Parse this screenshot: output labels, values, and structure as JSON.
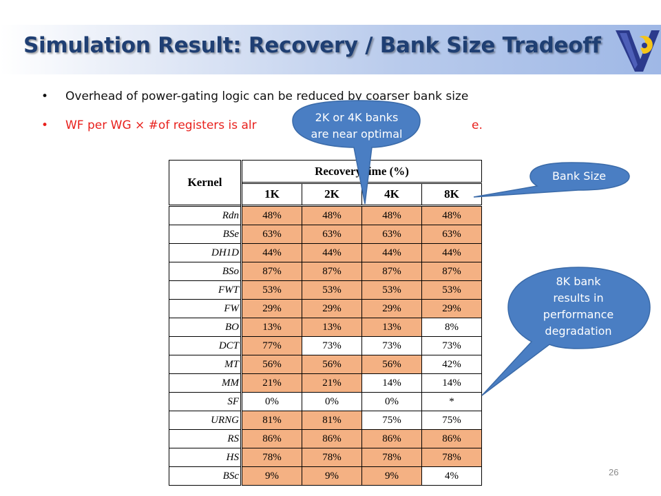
{
  "slide": {
    "title": "Simulation Result: Recovery / Bank Size Tradeoff",
    "page_number": "26",
    "logo_icon": "university-v-logo-icon"
  },
  "bullets": [
    {
      "marker": "•",
      "text": "Overhead of power-gating logic can be reduced by coarser bank size",
      "color": "#111111"
    },
    {
      "marker": "•",
      "text": "WF per WG × #of registers is alr",
      "tail": "e.",
      "color": "#e8201c"
    }
  ],
  "callouts": {
    "top": {
      "line1": "2K or 4K banks",
      "line2": "are near optimal"
    },
    "bank_size": {
      "text": "Bank Size"
    },
    "degradation": {
      "line1": "8K bank",
      "line2": "results in",
      "line3": "performance",
      "line4": "degradation"
    },
    "fill_color": "#4a7ec3"
  },
  "table": {
    "kernel_header": "Kernel",
    "group_header": "Recovery time (%)",
    "columns": [
      "1K",
      "2K",
      "4K",
      "8K"
    ],
    "highlight_color": "#f4b183",
    "rows": [
      {
        "kernel": "Rdn",
        "values": [
          "48%",
          "48%",
          "48%",
          "48%"
        ],
        "hl": [
          true,
          true,
          true,
          true
        ]
      },
      {
        "kernel": "BSe",
        "values": [
          "63%",
          "63%",
          "63%",
          "63%"
        ],
        "hl": [
          true,
          true,
          true,
          true
        ]
      },
      {
        "kernel": "DH1D",
        "values": [
          "44%",
          "44%",
          "44%",
          "44%"
        ],
        "hl": [
          true,
          true,
          true,
          true
        ]
      },
      {
        "kernel": "BSo",
        "values": [
          "87%",
          "87%",
          "87%",
          "87%"
        ],
        "hl": [
          true,
          true,
          true,
          true
        ]
      },
      {
        "kernel": "FWT",
        "values": [
          "53%",
          "53%",
          "53%",
          "53%"
        ],
        "hl": [
          true,
          true,
          true,
          true
        ]
      },
      {
        "kernel": "FW",
        "values": [
          "29%",
          "29%",
          "29%",
          "29%"
        ],
        "hl": [
          true,
          true,
          true,
          true
        ]
      },
      {
        "kernel": "BO",
        "values": [
          "13%",
          "13%",
          "13%",
          "8%"
        ],
        "hl": [
          true,
          true,
          true,
          false
        ]
      },
      {
        "kernel": "DCT",
        "values": [
          "77%",
          "73%",
          "73%",
          "73%"
        ],
        "hl": [
          true,
          false,
          false,
          false
        ]
      },
      {
        "kernel": "MT",
        "values": [
          "56%",
          "56%",
          "56%",
          "42%"
        ],
        "hl": [
          true,
          true,
          true,
          false
        ]
      },
      {
        "kernel": "MM",
        "values": [
          "21%",
          "21%",
          "14%",
          "14%"
        ],
        "hl": [
          true,
          true,
          false,
          false
        ]
      },
      {
        "kernel": "SF",
        "values": [
          "0%",
          "0%",
          "0%",
          "*"
        ],
        "hl": [
          false,
          false,
          false,
          false
        ]
      },
      {
        "kernel": "URNG",
        "values": [
          "81%",
          "81%",
          "75%",
          "75%"
        ],
        "hl": [
          true,
          true,
          false,
          false
        ]
      },
      {
        "kernel": "RS",
        "values": [
          "86%",
          "86%",
          "86%",
          "86%"
        ],
        "hl": [
          true,
          true,
          true,
          true
        ]
      },
      {
        "kernel": "HS",
        "values": [
          "78%",
          "78%",
          "78%",
          "78%"
        ],
        "hl": [
          true,
          true,
          true,
          true
        ]
      },
      {
        "kernel": "BSc",
        "values": [
          "9%",
          "9%",
          "9%",
          "4%"
        ],
        "hl": [
          true,
          true,
          true,
          false
        ]
      }
    ]
  }
}
